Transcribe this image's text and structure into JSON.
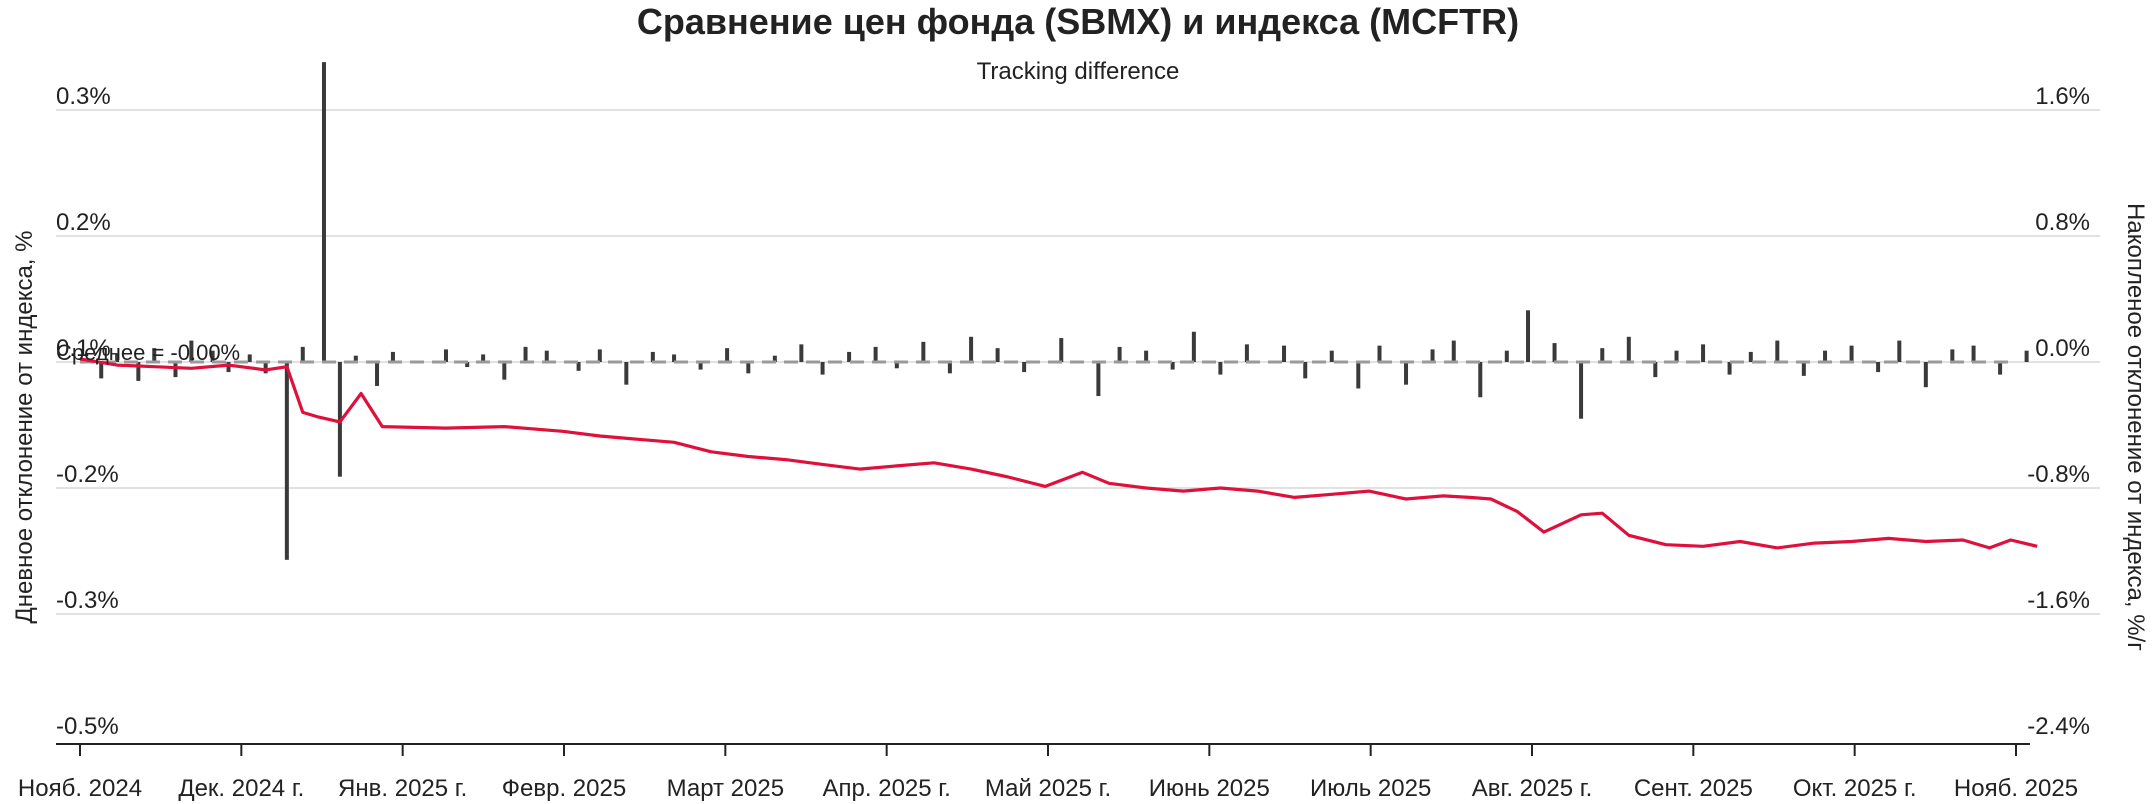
{
  "chart_data": {
    "type": "bar+line",
    "title": "Сравнение цен фонда (SBMX) и индекса (MCFTR)",
    "subtitle": "Tracking difference",
    "ylabel_left": "Дневное отклонение от индекса, %",
    "ylabel_right": "Накопленое отклонение от индекса, %/г",
    "left_axis": {
      "ticks": [
        "0.3%",
        "0.2%",
        "0.1%",
        "-0.2%",
        "-0.3%",
        "-0.5%"
      ],
      "ylim": [
        -0.5,
        0.3
      ]
    },
    "right_axis": {
      "ticks": [
        "1.6%",
        "0.8%",
        "0.0%",
        "-0.8%",
        "-1.6%",
        "-2.4%"
      ],
      "ylim": [
        -2.4,
        1.6
      ]
    },
    "x_ticks": [
      "Нояб. 2024",
      "Дек. 2024 г.",
      "Янв. 2025 г.",
      "Февр. 2025",
      "Март 2025",
      "Апр. 2025 г.",
      "Май 2025 г.",
      "Июнь 2025",
      "Июль 2025",
      "Авг. 2025 г.",
      "Сент. 2025",
      "Окт. 2025 г.",
      "Нояб. 2025"
    ],
    "annotation": "Среднее = -0.00%",
    "grid": true,
    "legend": "none",
    "colors": {
      "bars": "#3a3a3a",
      "line": "#e0103c",
      "mean_line": "#9a9a9a",
      "grid": "#d9d9d9"
    },
    "series": [
      {
        "kind": "bar",
        "axis": "left",
        "x": [
          "2024-11-05",
          "2024-11-08",
          "2024-11-12",
          "2024-11-15",
          "2024-11-19",
          "2024-11-22",
          "2024-11-26",
          "2024-11-29",
          "2024-12-03",
          "2024-12-06",
          "2024-12-10",
          "2024-12-13",
          "2024-12-17",
          "2024-12-20",
          "2024-12-23",
          "2024-12-27",
          "2024-12-30",
          "2025-01-09",
          "2025-01-13",
          "2025-01-16",
          "2025-01-20",
          "2025-01-24",
          "2025-01-28",
          "2025-02-03",
          "2025-02-07",
          "2025-02-12",
          "2025-02-17",
          "2025-02-21",
          "2025-02-26",
          "2025-03-03",
          "2025-03-07",
          "2025-03-12",
          "2025-03-17",
          "2025-03-21",
          "2025-03-26",
          "2025-03-31",
          "2025-04-04",
          "2025-04-09",
          "2025-04-14",
          "2025-04-18",
          "2025-04-23",
          "2025-04-28",
          "2025-05-05",
          "2025-05-12",
          "2025-05-16",
          "2025-05-21",
          "2025-05-26",
          "2025-05-30",
          "2025-06-04",
          "2025-06-09",
          "2025-06-16",
          "2025-06-20",
          "2025-06-25",
          "2025-06-30",
          "2025-07-04",
          "2025-07-09",
          "2025-07-14",
          "2025-07-18",
          "2025-07-23",
          "2025-07-28",
          "2025-08-01",
          "2025-08-06",
          "2025-08-11",
          "2025-08-15",
          "2025-08-20",
          "2025-08-25",
          "2025-08-29",
          "2025-09-03",
          "2025-09-08",
          "2025-09-12",
          "2025-09-17",
          "2025-09-22",
          "2025-09-26",
          "2025-10-01",
          "2025-10-06",
          "2025-10-10",
          "2025-10-15",
          "2025-10-20",
          "2025-10-24",
          "2025-10-29",
          "2025-11-03"
        ],
        "values": [
          -0.013,
          0.006,
          -0.015,
          0.011,
          -0.012,
          0.017,
          0.009,
          -0.008,
          0.006,
          -0.009,
          -0.157,
          0.012,
          0.238,
          -0.091,
          0.005,
          -0.019,
          0.008,
          0.01,
          -0.004,
          0.006,
          -0.014,
          0.012,
          0.009,
          -0.007,
          0.01,
          -0.018,
          0.008,
          0.006,
          -0.006,
          0.011,
          -0.009,
          0.005,
          0.014,
          -0.01,
          0.008,
          0.012,
          -0.005,
          0.016,
          -0.009,
          0.02,
          0.011,
          -0.008,
          0.019,
          -0.027,
          0.012,
          0.009,
          -0.006,
          0.024,
          -0.01,
          0.014,
          0.013,
          -0.013,
          0.009,
          -0.021,
          0.013,
          -0.018,
          0.01,
          0.017,
          -0.028,
          0.009,
          0.041,
          0.015,
          -0.045,
          0.011,
          0.02,
          -0.012,
          0.009,
          0.014,
          -0.01,
          0.008,
          0.017,
          -0.011,
          0.009,
          0.013,
          -0.008,
          0.017,
          -0.02,
          0.01,
          0.013,
          -0.01,
          0.009
        ]
      },
      {
        "kind": "line",
        "axis": "right",
        "x": [
          "2024-11-01",
          "2024-11-08",
          "2024-11-15",
          "2024-11-22",
          "2024-11-29",
          "2024-12-06",
          "2024-12-10",
          "2024-12-13",
          "2024-12-16",
          "2024-12-20",
          "2024-12-24",
          "2024-12-28",
          "2025-01-09",
          "2025-01-20",
          "2025-01-31",
          "2025-02-07",
          "2025-02-14",
          "2025-02-21",
          "2025-02-28",
          "2025-03-07",
          "2025-03-14",
          "2025-03-21",
          "2025-03-28",
          "2025-04-04",
          "2025-04-11",
          "2025-04-18",
          "2025-04-25",
          "2025-05-02",
          "2025-05-09",
          "2025-05-14",
          "2025-05-21",
          "2025-05-28",
          "2025-06-04",
          "2025-06-11",
          "2025-06-18",
          "2025-06-25",
          "2025-07-02",
          "2025-07-09",
          "2025-07-16",
          "2025-07-21",
          "2025-07-25",
          "2025-07-30",
          "2025-08-04",
          "2025-08-11",
          "2025-08-15",
          "2025-08-20",
          "2025-08-27",
          "2025-09-03",
          "2025-09-10",
          "2025-09-17",
          "2025-09-24",
          "2025-10-01",
          "2025-10-08",
          "2025-10-15",
          "2025-10-22",
          "2025-10-27",
          "2025-10-31",
          "2025-11-05"
        ],
        "values": [
          0.02,
          -0.02,
          -0.03,
          -0.04,
          -0.02,
          -0.05,
          -0.03,
          -0.32,
          -0.35,
          -0.38,
          -0.2,
          -0.41,
          -0.42,
          -0.41,
          -0.44,
          -0.47,
          -0.49,
          -0.51,
          -0.57,
          -0.6,
          -0.62,
          -0.65,
          -0.68,
          -0.66,
          -0.64,
          -0.68,
          -0.73,
          -0.79,
          -0.7,
          -0.77,
          -0.8,
          -0.82,
          -0.8,
          -0.82,
          -0.86,
          -0.84,
          -0.82,
          -0.87,
          -0.85,
          -0.86,
          -0.87,
          -0.95,
          -1.08,
          -0.97,
          -0.96,
          -1.1,
          -1.16,
          -1.17,
          -1.14,
          -1.18,
          -1.15,
          -1.14,
          -1.12,
          -1.14,
          -1.13,
          -1.18,
          -1.13,
          -1.17
        ]
      }
    ]
  }
}
